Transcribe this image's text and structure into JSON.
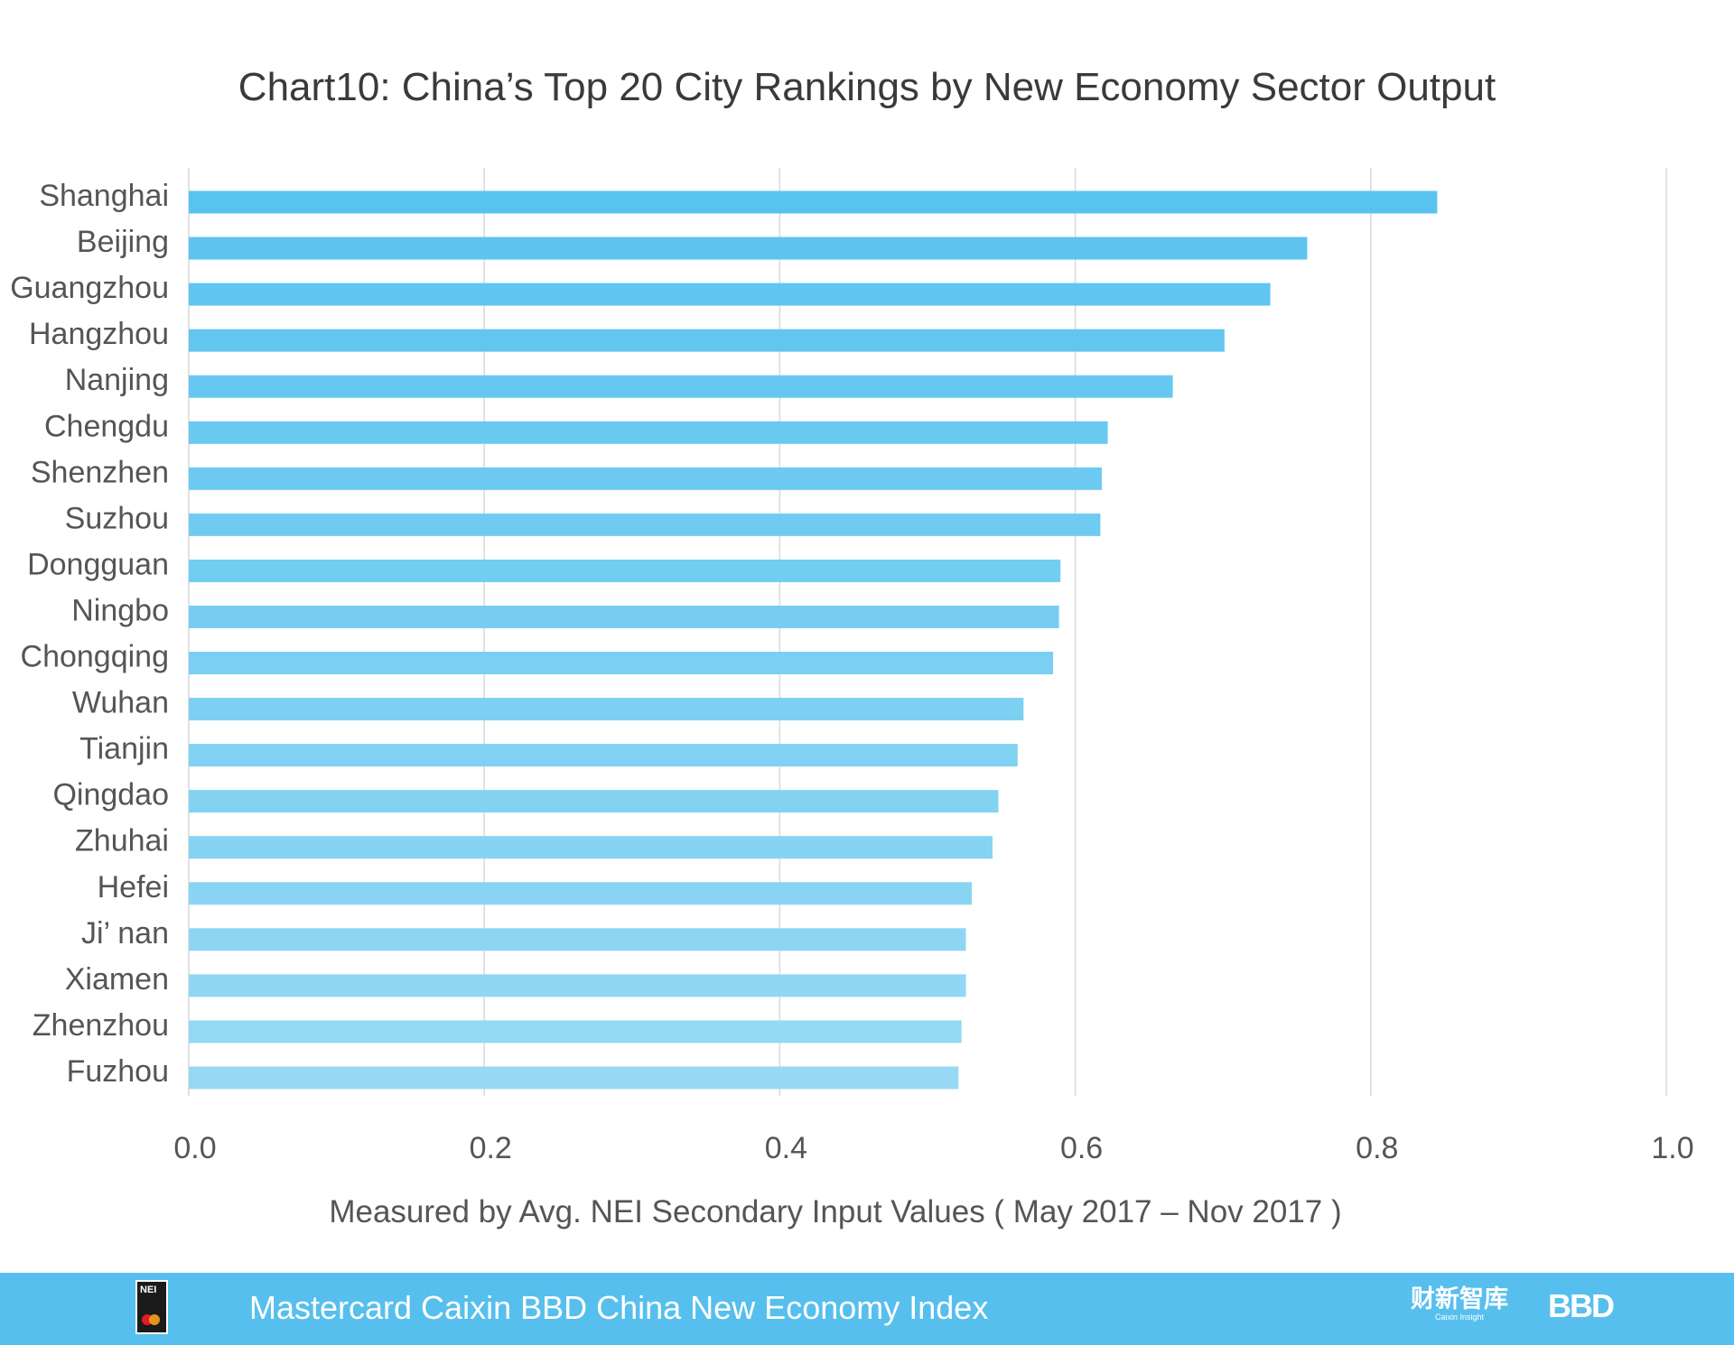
{
  "chart_data": {
    "type": "bar",
    "orientation": "horizontal",
    "title": "Chart10: China’s Top 20 City Rankings by New Economy Sector Output",
    "xlabel": "Measured by Avg. NEI Secondary Input Values ( May 2017 – Nov 2017 )",
    "ylabel": "",
    "xlim": [
      0,
      1.0
    ],
    "x_ticks": [
      "0.0",
      "0.2",
      "0.4",
      "0.6",
      "0.8",
      "1.0"
    ],
    "grid": true,
    "categories": [
      "Shanghai",
      "Beijing",
      "Guangzhou",
      "Hangzhou",
      "Nanjing",
      "Chengdu",
      "Shenzhen",
      "Suzhou",
      "Dongguan",
      "Ningbo",
      "Chongqing",
      "Wuhan",
      "Tianjin",
      "Qingdao",
      "Zhuhai",
      "Hefei",
      "Ji’ nan",
      "Xiamen",
      "Zhenzhou",
      "Fuzhou"
    ],
    "values": [
      0.845,
      0.757,
      0.732,
      0.701,
      0.666,
      0.622,
      0.618,
      0.617,
      0.59,
      0.589,
      0.585,
      0.565,
      0.561,
      0.548,
      0.544,
      0.53,
      0.526,
      0.526,
      0.523,
      0.521
    ]
  },
  "colors": {
    "bar_top": "#59c3ef",
    "bar_bottom": "#97d9f4",
    "grid": "#d9d9d9",
    "footer": "#57bfed"
  },
  "footer": {
    "logo_text": "NEI",
    "title": "Mastercard Caixin BBD China New Economy Index",
    "partner_cn": "财新智库",
    "partner_en": "Caixin Insight",
    "partner_2": "BBD"
  }
}
